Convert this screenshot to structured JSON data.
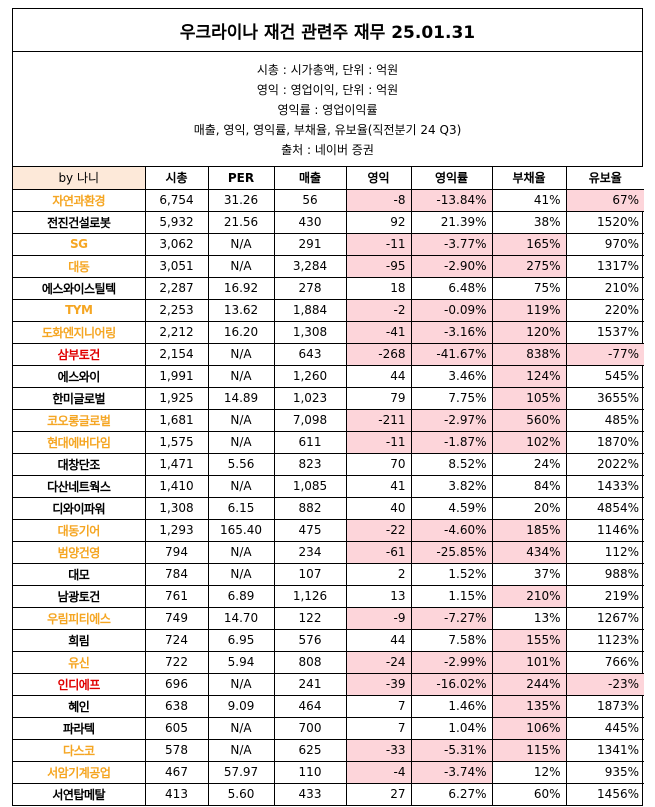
{
  "title": "우크라이나 재건 관련주 재무 25.01.31",
  "info": [
    "시총 : 시가총액, 단위 : 억원",
    "영익 : 영업이익, 단위 : 억원",
    "영익률 : 영업이익률",
    "매출, 영익, 영익률, 부채율, 유보율(직전분기 24 Q3)",
    "출처 : 네이버 증권"
  ],
  "headers": [
    "by 나니",
    "시총",
    "PER",
    "매출",
    "영익",
    "영익률",
    "부채율",
    "유보율"
  ],
  "colors": {
    "orange": "#f5a623",
    "red": "#e00000",
    "pink": "#fdd5da",
    "header_bg": "#fde9d9"
  },
  "rows": [
    {
      "name": "자연과환경",
      "color": "orange",
      "cap": "6,754",
      "per": "31.26",
      "sales": "56",
      "op": "-8",
      "margin": "-13.84%",
      "debt": "41%",
      "reserve": "67%",
      "hl": [
        "op",
        "margin",
        "reserve"
      ]
    },
    {
      "name": "전진건설로봇",
      "color": "black",
      "cap": "5,932",
      "per": "21.56",
      "sales": "430",
      "op": "92",
      "margin": "21.39%",
      "debt": "38%",
      "reserve": "1520%",
      "hl": []
    },
    {
      "name": "SG",
      "color": "orange",
      "cap": "3,062",
      "per": "N/A",
      "sales": "291",
      "op": "-11",
      "margin": "-3.77%",
      "debt": "165%",
      "reserve": "970%",
      "hl": [
        "op",
        "margin",
        "debt"
      ]
    },
    {
      "name": "대동",
      "color": "orange",
      "cap": "3,051",
      "per": "N/A",
      "sales": "3,284",
      "op": "-95",
      "margin": "-2.90%",
      "debt": "275%",
      "reserve": "1317%",
      "hl": [
        "op",
        "margin",
        "debt"
      ]
    },
    {
      "name": "에스와이스틸텍",
      "color": "black",
      "cap": "2,287",
      "per": "16.92",
      "sales": "278",
      "op": "18",
      "margin": "6.48%",
      "debt": "75%",
      "reserve": "210%",
      "hl": []
    },
    {
      "name": "TYM",
      "color": "orange",
      "cap": "2,253",
      "per": "13.62",
      "sales": "1,884",
      "op": "-2",
      "margin": "-0.09%",
      "debt": "119%",
      "reserve": "220%",
      "hl": [
        "op",
        "margin",
        "debt"
      ]
    },
    {
      "name": "도화엔지니어링",
      "color": "orange",
      "cap": "2,212",
      "per": "16.20",
      "sales": "1,308",
      "op": "-41",
      "margin": "-3.16%",
      "debt": "120%",
      "reserve": "1537%",
      "hl": [
        "op",
        "margin",
        "debt"
      ]
    },
    {
      "name": "삼부토건",
      "color": "red",
      "cap": "2,154",
      "per": "N/A",
      "sales": "643",
      "op": "-268",
      "margin": "-41.67%",
      "debt": "838%",
      "reserve": "-77%",
      "hl": [
        "op",
        "margin",
        "debt",
        "reserve"
      ]
    },
    {
      "name": "에스와이",
      "color": "black",
      "cap": "1,991",
      "per": "N/A",
      "sales": "1,260",
      "op": "44",
      "margin": "3.46%",
      "debt": "124%",
      "reserve": "545%",
      "hl": [
        "debt"
      ]
    },
    {
      "name": "한미글로벌",
      "color": "black",
      "cap": "1,925",
      "per": "14.89",
      "sales": "1,023",
      "op": "79",
      "margin": "7.75%",
      "debt": "105%",
      "reserve": "3655%",
      "hl": [
        "debt"
      ]
    },
    {
      "name": "코오롱글로벌",
      "color": "orange",
      "cap": "1,681",
      "per": "N/A",
      "sales": "7,098",
      "op": "-211",
      "margin": "-2.97%",
      "debt": "560%",
      "reserve": "485%",
      "hl": [
        "op",
        "margin",
        "debt"
      ]
    },
    {
      "name": "현대에버다임",
      "color": "orange",
      "cap": "1,575",
      "per": "N/A",
      "sales": "611",
      "op": "-11",
      "margin": "-1.87%",
      "debt": "102%",
      "reserve": "1870%",
      "hl": [
        "op",
        "margin",
        "debt"
      ]
    },
    {
      "name": "대창단조",
      "color": "black",
      "cap": "1,471",
      "per": "5.56",
      "sales": "823",
      "op": "70",
      "margin": "8.52%",
      "debt": "24%",
      "reserve": "2022%",
      "hl": []
    },
    {
      "name": "다산네트웍스",
      "color": "black",
      "cap": "1,410",
      "per": "N/A",
      "sales": "1,085",
      "op": "41",
      "margin": "3.82%",
      "debt": "84%",
      "reserve": "1433%",
      "hl": []
    },
    {
      "name": "디와이파워",
      "color": "black",
      "cap": "1,308",
      "per": "6.15",
      "sales": "882",
      "op": "40",
      "margin": "4.59%",
      "debt": "20%",
      "reserve": "4854%",
      "hl": []
    },
    {
      "name": "대동기어",
      "color": "orange",
      "cap": "1,293",
      "per": "165.40",
      "sales": "475",
      "op": "-22",
      "margin": "-4.60%",
      "debt": "185%",
      "reserve": "1146%",
      "hl": [
        "op",
        "margin",
        "debt"
      ]
    },
    {
      "name": "범양건영",
      "color": "orange",
      "cap": "794",
      "per": "N/A",
      "sales": "234",
      "op": "-61",
      "margin": "-25.85%",
      "debt": "434%",
      "reserve": "112%",
      "hl": [
        "op",
        "margin",
        "debt"
      ]
    },
    {
      "name": "대모",
      "color": "black",
      "cap": "784",
      "per": "N/A",
      "sales": "107",
      "op": "2",
      "margin": "1.52%",
      "debt": "37%",
      "reserve": "988%",
      "hl": []
    },
    {
      "name": "남광토건",
      "color": "black",
      "cap": "761",
      "per": "6.89",
      "sales": "1,126",
      "op": "13",
      "margin": "1.15%",
      "debt": "210%",
      "reserve": "219%",
      "hl": [
        "debt"
      ]
    },
    {
      "name": "우림피티에스",
      "color": "orange",
      "cap": "749",
      "per": "14.70",
      "sales": "122",
      "op": "-9",
      "margin": "-7.27%",
      "debt": "13%",
      "reserve": "1267%",
      "hl": [
        "op",
        "margin"
      ]
    },
    {
      "name": "희림",
      "color": "black",
      "cap": "724",
      "per": "6.95",
      "sales": "576",
      "op": "44",
      "margin": "7.58%",
      "debt": "155%",
      "reserve": "1123%",
      "hl": [
        "debt"
      ]
    },
    {
      "name": "유신",
      "color": "orange",
      "cap": "722",
      "per": "5.94",
      "sales": "808",
      "op": "-24",
      "margin": "-2.99%",
      "debt": "101%",
      "reserve": "766%",
      "hl": [
        "op",
        "margin",
        "debt"
      ]
    },
    {
      "name": "인디에프",
      "color": "red",
      "cap": "696",
      "per": "N/A",
      "sales": "241",
      "op": "-39",
      "margin": "-16.02%",
      "debt": "244%",
      "reserve": "-23%",
      "hl": [
        "op",
        "margin",
        "debt",
        "reserve"
      ]
    },
    {
      "name": "혜인",
      "color": "black",
      "cap": "638",
      "per": "9.09",
      "sales": "464",
      "op": "7",
      "margin": "1.46%",
      "debt": "135%",
      "reserve": "1873%",
      "hl": [
        "debt"
      ]
    },
    {
      "name": "파라텍",
      "color": "black",
      "cap": "605",
      "per": "N/A",
      "sales": "700",
      "op": "7",
      "margin": "1.04%",
      "debt": "106%",
      "reserve": "445%",
      "hl": [
        "debt"
      ]
    },
    {
      "name": "다스코",
      "color": "orange",
      "cap": "578",
      "per": "N/A",
      "sales": "625",
      "op": "-33",
      "margin": "-5.31%",
      "debt": "115%",
      "reserve": "1341%",
      "hl": [
        "op",
        "margin",
        "debt"
      ]
    },
    {
      "name": "서암기계공업",
      "color": "orange",
      "cap": "467",
      "per": "57.97",
      "sales": "110",
      "op": "-4",
      "margin": "-3.74%",
      "debt": "12%",
      "reserve": "935%",
      "hl": [
        "op",
        "margin"
      ]
    },
    {
      "name": "서연탑메탈",
      "color": "black",
      "cap": "413",
      "per": "5.60",
      "sales": "433",
      "op": "27",
      "margin": "6.27%",
      "debt": "60%",
      "reserve": "1456%",
      "hl": []
    }
  ]
}
